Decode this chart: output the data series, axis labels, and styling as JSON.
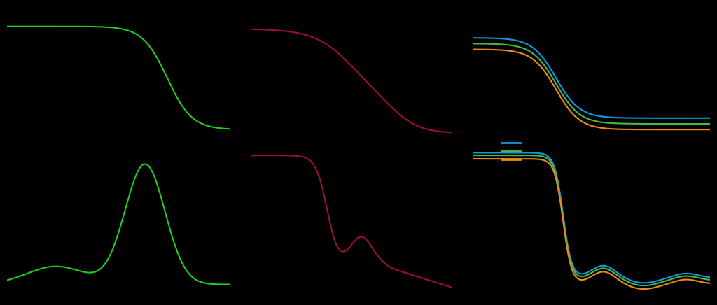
{
  "background_color": "#000000",
  "fig_width": 10.24,
  "fig_height": 4.36,
  "panel1": {
    "color": "#22cc22",
    "linewidth": 1.5
  },
  "panel2": {
    "color": "#991133",
    "linewidth": 1.5
  },
  "panel3": {
    "colors": [
      "#1199dd",
      "#44bb44",
      "#ee8822"
    ],
    "linewidth": 1.5
  }
}
